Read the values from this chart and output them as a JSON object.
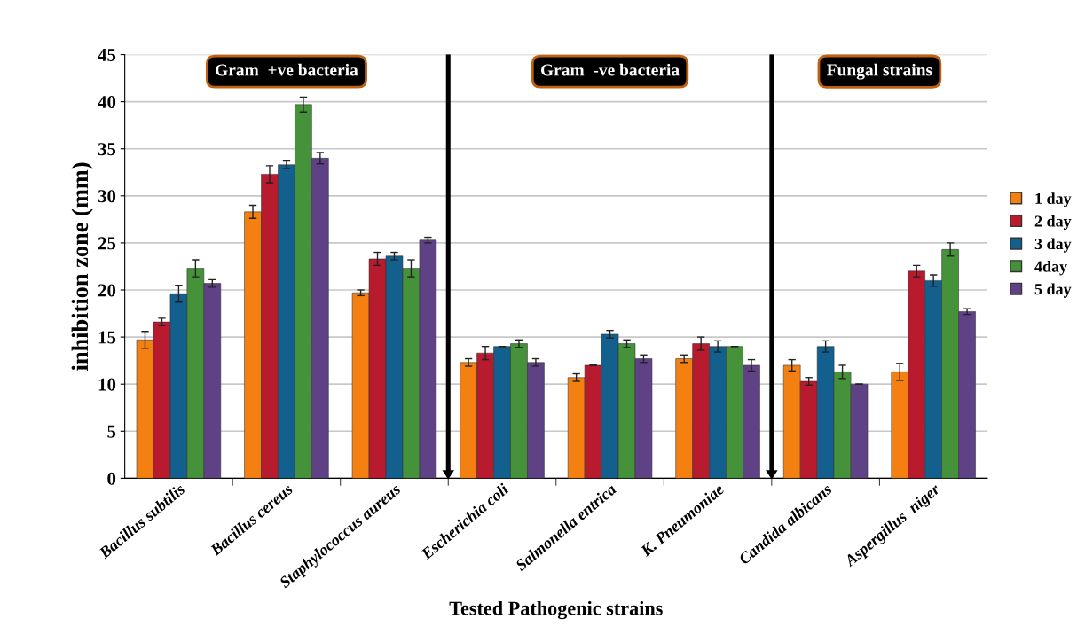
{
  "chart_data": {
    "type": "bar",
    "xlabel": "Tested Pathogenic strains",
    "ylabel": "inhibition zone (mm)",
    "categories": [
      "Bacillus subtilis",
      "Bacillus cereus",
      "Staphylococcus aureus",
      "Escherichia coli",
      "Salmonella entrica",
      "K. Pneumoniae",
      "Candida albicans",
      "Aspergillus  niger"
    ],
    "series": [
      {
        "name": "1 day",
        "color": "#f58012",
        "values": [
          14.7,
          28.3,
          19.7,
          12.3,
          10.7,
          12.7,
          12.0,
          11.3
        ],
        "errors": [
          0.9,
          0.7,
          0.3,
          0.4,
          0.4,
          0.4,
          0.6,
          0.9
        ]
      },
      {
        "name": "2 day",
        "color": "#b81a2e",
        "values": [
          16.6,
          32.3,
          23.3,
          13.3,
          12.0,
          14.3,
          10.3,
          22.0
        ],
        "errors": [
          0.4,
          0.9,
          0.7,
          0.7,
          0,
          0.7,
          0.4,
          0.6
        ]
      },
      {
        "name": "3 day",
        "color": "#135f8e",
        "values": [
          19.6,
          33.3,
          23.6,
          14.0,
          15.3,
          14.0,
          14.0,
          21.0
        ],
        "errors": [
          0.9,
          0.4,
          0.4,
          0,
          0.4,
          0.6,
          0.6,
          0.6
        ]
      },
      {
        "name": "4day",
        "color": "#45923a",
        "values": [
          22.3,
          39.7,
          22.3,
          14.3,
          14.3,
          14.0,
          11.3,
          24.3
        ],
        "errors": [
          0.9,
          0.8,
          0.9,
          0.4,
          0.4,
          0,
          0.7,
          0.7
        ]
      },
      {
        "name": "5 day",
        "color": "#5f4285",
        "values": [
          20.7,
          34.0,
          25.3,
          12.3,
          12.7,
          12.0,
          10.0,
          17.7
        ],
        "errors": [
          0.4,
          0.6,
          0.3,
          0.4,
          0.4,
          0.6,
          0,
          0.3
        ]
      }
    ],
    "ylim": [
      0,
      45
    ],
    "yticks": [
      0,
      5,
      10,
      15,
      20,
      25,
      30,
      35,
      40,
      45
    ],
    "grid": "y",
    "legend": "right",
    "annotations": [
      "Gram  +ve bacteria",
      "Gram  -ve bacteria",
      "Fungal strains"
    ]
  }
}
